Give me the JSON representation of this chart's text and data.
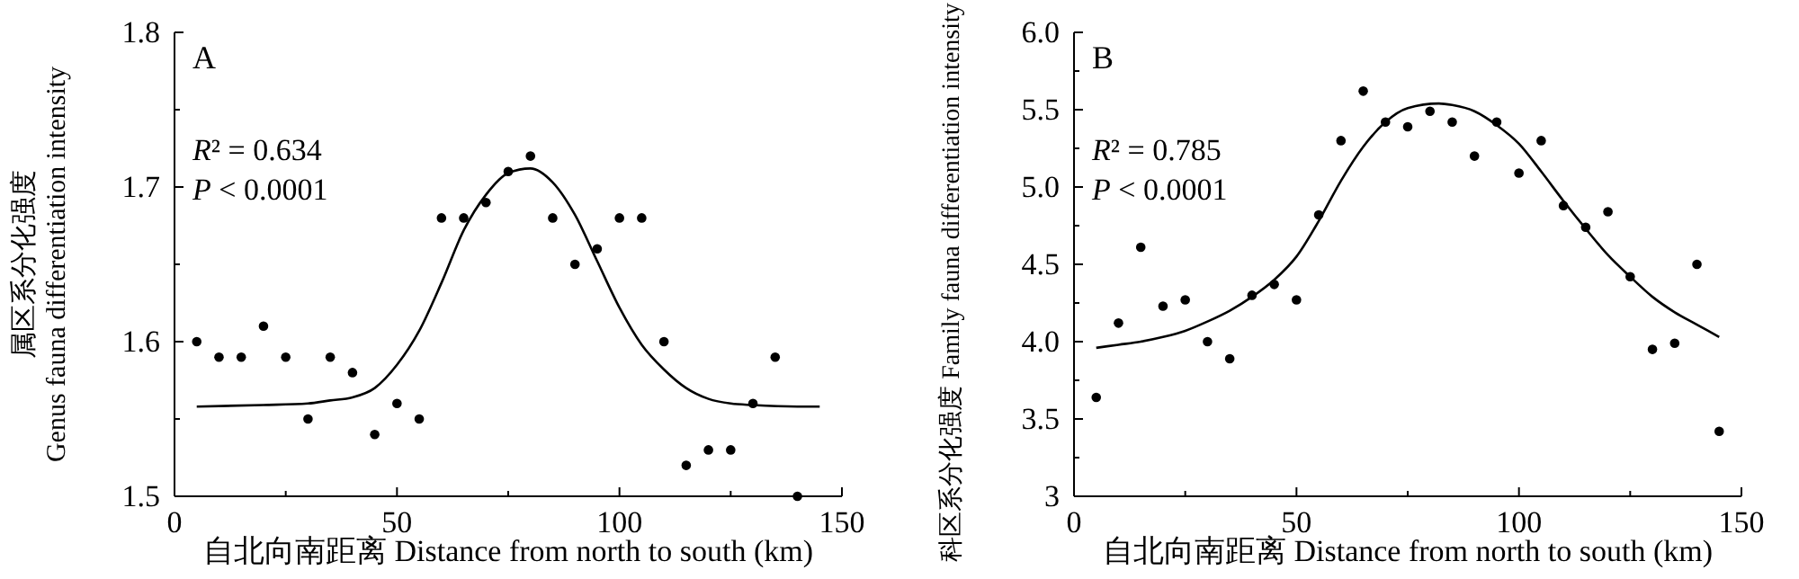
{
  "chart_data": [
    {
      "type": "scatter",
      "title": "A",
      "xlabel": "自北向南距离 Distance from north to south (km)",
      "ylabel": "属区系分化强度\nGenus fauna differentiation intensity",
      "xlim": [
        0,
        150
      ],
      "xticks": [
        0,
        {
          "value": 25,
          "label": null
        },
        50,
        {
          "value": 75,
          "label": null
        },
        100,
        {
          "value": 125,
          "label": null
        },
        150
      ],
      "ylim": [
        1.5,
        1.8
      ],
      "yticks": [
        1.5,
        {
          "value": 1.55,
          "label": null
        },
        1.6,
        {
          "value": 1.65,
          "label": null
        },
        1.7,
        {
          "value": 1.75,
          "label": null
        },
        1.8
      ],
      "grid": false,
      "legend": false,
      "annotations": [
        "R² = 0.634",
        "P < 0.0001"
      ],
      "series": [
        {
          "type": "scatter",
          "marker": "circle",
          "color": "#000000",
          "x": [
            5,
            10,
            15,
            20,
            25,
            30,
            35,
            40,
            45,
            50,
            55,
            60,
            65,
            70,
            75,
            80,
            85,
            90,
            95,
            100,
            105,
            110,
            115,
            120,
            125,
            130,
            135,
            140
          ],
          "values": [
            1.6,
            1.59,
            1.59,
            1.61,
            1.59,
            1.55,
            1.59,
            1.58,
            1.54,
            1.56,
            1.55,
            1.68,
            1.68,
            1.69,
            1.71,
            1.72,
            1.68,
            1.65,
            1.66,
            1.68,
            1.68,
            1.6,
            1.52,
            1.53,
            1.53,
            1.56,
            1.59,
            1.5
          ]
        },
        {
          "type": "line",
          "color": "#000000",
          "line_style": "solid",
          "x": [
            5,
            20,
            30,
            35,
            40,
            45,
            50,
            55,
            60,
            65,
            70,
            75,
            80,
            85,
            90,
            95,
            100,
            105,
            110,
            115,
            120,
            125,
            130,
            140,
            145
          ],
          "values": [
            1.558,
            1.559,
            1.56,
            1.562,
            1.564,
            1.57,
            1.585,
            1.607,
            1.638,
            1.672,
            1.695,
            1.709,
            1.712,
            1.703,
            1.682,
            1.652,
            1.622,
            1.598,
            1.582,
            1.57,
            1.563,
            1.56,
            1.559,
            1.558,
            1.558
          ]
        }
      ]
    },
    {
      "type": "scatter",
      "title": "B",
      "xlabel": "自北向南距离 Distance from north to south (km)",
      "ylabel": "科区系分化强度 Family fauna differentiation intensity",
      "xlim": [
        0,
        150
      ],
      "xticks": [
        0,
        {
          "value": 25,
          "label": null
        },
        50,
        {
          "value": 75,
          "label": null
        },
        100,
        {
          "value": 125,
          "label": null
        },
        150
      ],
      "ylim": [
        3,
        6
      ],
      "yticks": [
        3.0,
        {
          "value": 3.25,
          "label": null
        },
        {
          "value": 3.5,
          "label": "3.5"
        },
        {
          "value": 3.75,
          "label": null
        },
        {
          "value": 4,
          "label": "4.0"
        },
        {
          "value": 4.25,
          "label": null
        },
        {
          "value": 4.5,
          "label": "4.5"
        },
        {
          "value": 4.75,
          "label": null
        },
        {
          "value": 5,
          "label": "5.0"
        },
        {
          "value": 5.25,
          "label": null
        },
        {
          "value": 5.5,
          "label": "5.5"
        },
        {
          "value": 5.75,
          "label": null
        },
        {
          "value": 6,
          "label": "6.0"
        }
      ],
      "grid": false,
      "legend": false,
      "annotations": [
        "R² = 0.785",
        "P < 0.0001"
      ],
      "series": [
        {
          "type": "scatter",
          "marker": "circle",
          "color": "#000000",
          "x": [
            5,
            10,
            15,
            20,
            25,
            30,
            35,
            40,
            45,
            50,
            55,
            60,
            65,
            70,
            75,
            80,
            85,
            90,
            95,
            100,
            105,
            110,
            115,
            120,
            125,
            130,
            135,
            140,
            145
          ],
          "values": [
            3.64,
            4.12,
            4.61,
            4.23,
            4.27,
            4.0,
            3.89,
            4.3,
            4.37,
            4.27,
            4.82,
            5.3,
            5.62,
            5.42,
            5.39,
            5.49,
            5.42,
            5.2,
            5.42,
            5.09,
            5.3,
            4.88,
            4.74,
            4.84,
            4.42,
            3.95,
            3.99,
            4.5,
            3.42
          ]
        },
        {
          "type": "line",
          "color": "#000000",
          "line_style": "solid",
          "x": [
            5,
            10,
            15,
            20,
            25,
            30,
            35,
            40,
            45,
            50,
            55,
            60,
            65,
            70,
            75,
            82,
            85,
            90,
            95,
            100,
            105,
            110,
            115,
            120,
            125,
            130,
            135,
            140,
            145
          ],
          "values": [
            3.96,
            3.98,
            4.0,
            4.03,
            4.07,
            4.13,
            4.2,
            4.29,
            4.4,
            4.55,
            4.78,
            5.04,
            5.26,
            5.42,
            5.51,
            5.54,
            5.53,
            5.49,
            5.4,
            5.28,
            5.1,
            4.91,
            4.73,
            4.56,
            4.42,
            4.29,
            4.19,
            4.11,
            4.03
          ]
        }
      ]
    }
  ]
}
